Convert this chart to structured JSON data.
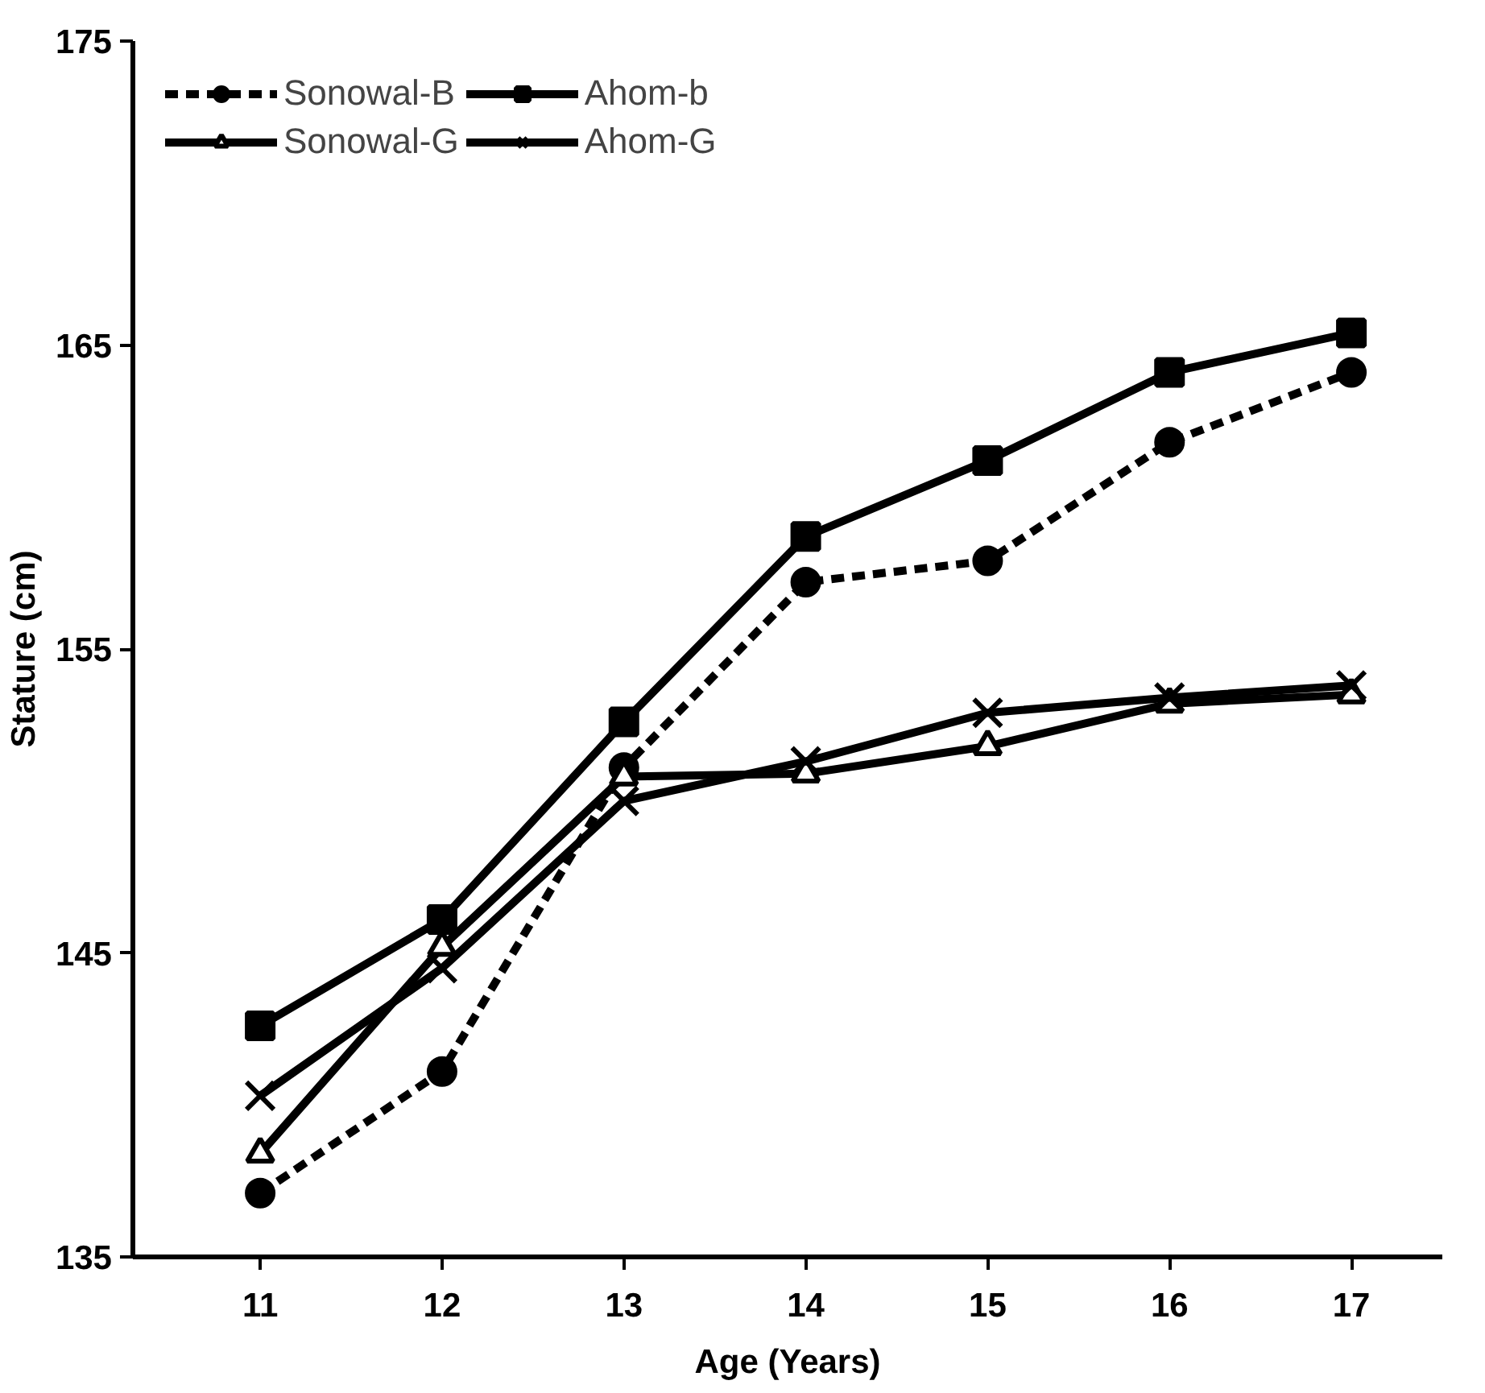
{
  "chart_data": {
    "type": "line",
    "xlabel": "Age (Years)",
    "ylabel": "Stature (cm)",
    "categories": [
      "11",
      "12",
      "13",
      "14",
      "15",
      "16",
      "17"
    ],
    "ylim": [
      135,
      175
    ],
    "yticks": [
      135,
      145,
      155,
      165,
      175
    ],
    "grid": false,
    "legend": "top left",
    "series": [
      {
        "name": "Sonowal-B",
        "color": "#000000",
        "marker": "circle",
        "line_style": "dashed",
        "values": [
          137.1,
          141.1,
          151.1,
          157.2,
          157.9,
          161.8,
          164.1
        ]
      },
      {
        "name": "Ahom-b",
        "color": "#000000",
        "marker": "square",
        "line_style": "solid",
        "values": [
          142.6,
          146.1,
          152.6,
          158.7,
          161.2,
          164.1,
          165.4
        ]
      },
      {
        "name": "Sonowal-G",
        "color": "#000000",
        "marker": "triangle",
        "line_style": "solid",
        "values": [
          138.4,
          145.2,
          150.8,
          150.9,
          151.8,
          153.2,
          153.5
        ]
      },
      {
        "name": "Ahom-G",
        "color": "#000000",
        "marker": "cross",
        "line_style": "solid",
        "values": [
          140.3,
          144.5,
          150.0,
          151.3,
          152.9,
          153.4,
          153.8
        ]
      }
    ]
  }
}
